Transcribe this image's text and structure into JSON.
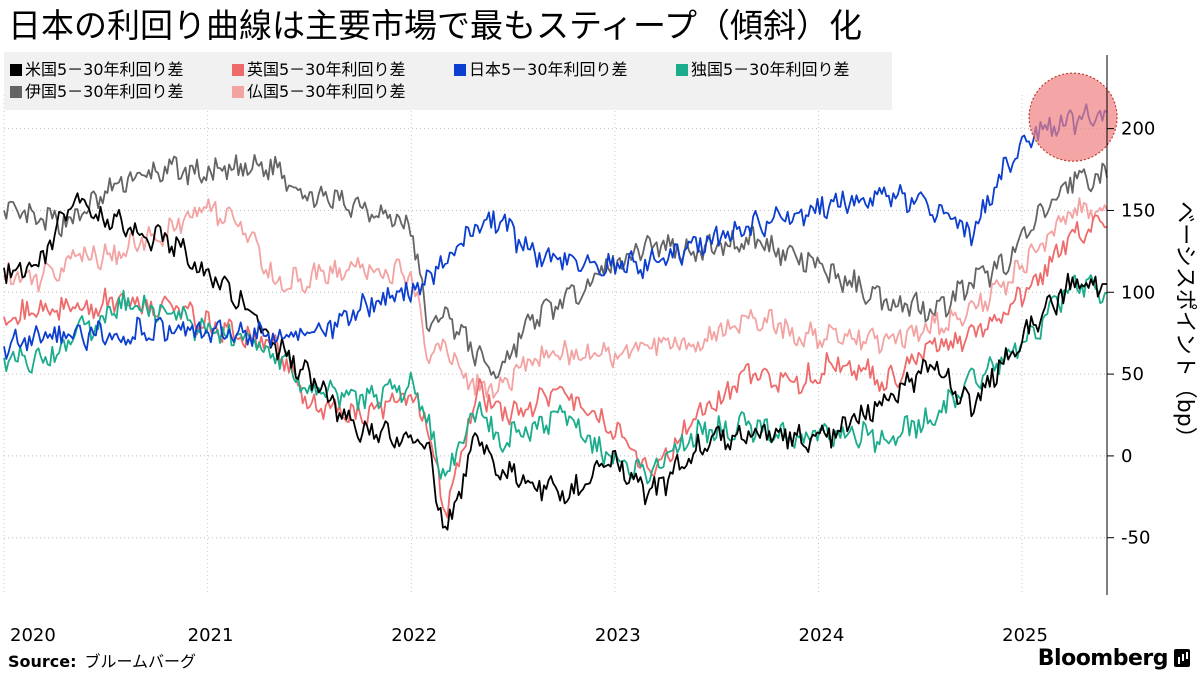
{
  "chart_data": {
    "type": "line",
    "title": "日本の利回り曲線は主要市場で最もスティープ（傾斜）化",
    "ylabel": "ベーシスポイント（bp）",
    "xlabel": "",
    "x_start": "2020-01",
    "x_end": "2025-06",
    "ylim": [
      -85,
      245
    ],
    "yticks": [
      -50,
      0,
      50,
      100,
      150,
      200
    ],
    "xticks": [
      "2020",
      "2021",
      "2022",
      "2023",
      "2024",
      "2025"
    ],
    "grid": "horizontal dotted",
    "legend_position": "top-left",
    "source_label": "Source:",
    "source_value": "ブルームバーグ",
    "brand": "Bloomberg",
    "annotation": {
      "type": "circle",
      "x": "2025-04",
      "y": 207,
      "color": "#f08080"
    },
    "series": [
      {
        "name": "伊国5－30年利回り差",
        "color": "#646464",
        "x": [
          "2020-01",
          "2020-03",
          "2020-05",
          "2020-08",
          "2020-11",
          "2021-01",
          "2021-03",
          "2021-05",
          "2021-07",
          "2021-10",
          "2022-01",
          "2022-02",
          "2022-03",
          "2022-05",
          "2022-06",
          "2022-08",
          "2022-10",
          "2023-01",
          "2023-03",
          "2023-06",
          "2023-09",
          "2023-12",
          "2024-02",
          "2024-05",
          "2024-08",
          "2024-10",
          "2024-12",
          "2025-02",
          "2025-04",
          "2025-06"
        ],
        "values": [
          150,
          143,
          144,
          168,
          175,
          172,
          175,
          177,
          158,
          154,
          140,
          78,
          88,
          60,
          50,
          82,
          95,
          118,
          130,
          125,
          133,
          120,
          110,
          95,
          90,
          105,
          118,
          145,
          170,
          170
        ]
      },
      {
        "name": "仏国5－30年利回り差",
        "color": "#f4a3a3",
        "x": [
          "2020-01",
          "2020-03",
          "2020-05",
          "2020-08",
          "2020-11",
          "2021-01",
          "2021-03",
          "2021-05",
          "2021-07",
          "2021-10",
          "2022-01",
          "2022-02",
          "2022-03",
          "2022-05",
          "2022-06",
          "2022-08",
          "2022-10",
          "2023-01",
          "2023-03",
          "2023-06",
          "2023-09",
          "2023-12",
          "2024-02",
          "2024-05",
          "2024-08",
          "2024-10",
          "2024-12",
          "2025-02",
          "2025-04",
          "2025-06"
        ],
        "values": [
          110,
          108,
          120,
          125,
          140,
          150,
          142,
          105,
          108,
          115,
          110,
          62,
          68,
          40,
          42,
          58,
          62,
          62,
          70,
          68,
          88,
          72,
          75,
          70,
          80,
          90,
          105,
          130,
          150,
          150
        ]
      },
      {
        "name": "英国5－30年利回り差",
        "color": "#ef6b6b",
        "x": [
          "2020-01",
          "2020-03",
          "2020-05",
          "2020-08",
          "2020-11",
          "2021-01",
          "2021-03",
          "2021-05",
          "2021-07",
          "2021-10",
          "2022-01",
          "2022-02",
          "2022-03",
          "2022-05",
          "2022-06",
          "2022-08",
          "2022-10",
          "2023-01",
          "2023-03",
          "2023-06",
          "2023-09",
          "2023-12",
          "2024-02",
          "2024-05",
          "2024-08",
          "2024-10",
          "2024-12",
          "2025-02",
          "2025-04",
          "2025-06"
        ],
        "values": [
          85,
          88,
          90,
          95,
          90,
          80,
          72,
          70,
          30,
          25,
          38,
          20,
          -35,
          45,
          25,
          30,
          40,
          15,
          -10,
          25,
          50,
          45,
          58,
          45,
          68,
          72,
          90,
          110,
          138,
          140
        ]
      },
      {
        "name": "独国5－30年利回り差",
        "color": "#1bac8c",
        "x": [
          "2020-01",
          "2020-03",
          "2020-05",
          "2020-08",
          "2020-11",
          "2021-01",
          "2021-03",
          "2021-05",
          "2021-07",
          "2021-10",
          "2022-01",
          "2022-02",
          "2022-03",
          "2022-05",
          "2022-06",
          "2022-08",
          "2022-10",
          "2023-01",
          "2023-03",
          "2023-06",
          "2023-09",
          "2023-12",
          "2024-02",
          "2024-05",
          "2024-08",
          "2024-10",
          "2024-12",
          "2025-02",
          "2025-04",
          "2025-06"
        ],
        "values": [
          60,
          58,
          72,
          92,
          88,
          75,
          72,
          62,
          40,
          35,
          42,
          20,
          -15,
          30,
          10,
          15,
          25,
          -5,
          -10,
          15,
          18,
          10,
          15,
          10,
          25,
          45,
          60,
          80,
          105,
          100
        ]
      },
      {
        "name": "米国5－30年利回り差",
        "color": "#000000",
        "x": [
          "2020-01",
          "2020-03",
          "2020-05",
          "2020-08",
          "2020-11",
          "2021-01",
          "2021-03",
          "2021-05",
          "2021-07",
          "2021-10",
          "2022-01",
          "2022-02",
          "2022-03",
          "2022-05",
          "2022-06",
          "2022-08",
          "2022-10",
          "2023-01",
          "2023-03",
          "2023-06",
          "2023-09",
          "2023-12",
          "2024-02",
          "2024-05",
          "2024-08",
          "2024-10",
          "2024-12",
          "2025-02",
          "2025-04",
          "2025-06"
        ],
        "values": [
          115,
          115,
          155,
          140,
          130,
          112,
          95,
          68,
          48,
          15,
          10,
          5,
          -50,
          15,
          -10,
          -15,
          -25,
          0,
          -25,
          5,
          15,
          10,
          15,
          35,
          55,
          30,
          60,
          85,
          105,
          105
        ]
      },
      {
        "name": "日本5－30年利回り差",
        "color": "#0c3ecf",
        "x": [
          "2020-01",
          "2020-03",
          "2020-05",
          "2020-08",
          "2020-11",
          "2021-01",
          "2021-03",
          "2021-05",
          "2021-07",
          "2021-10",
          "2022-01",
          "2022-02",
          "2022-03",
          "2022-05",
          "2022-06",
          "2022-08",
          "2022-10",
          "2023-01",
          "2023-03",
          "2023-06",
          "2023-09",
          "2023-12",
          "2024-02",
          "2024-05",
          "2024-08",
          "2024-10",
          "2024-12",
          "2025-02",
          "2025-04",
          "2025-06"
        ],
        "values": [
          67,
          72,
          73,
          75,
          76,
          75,
          75,
          74,
          72,
          90,
          100,
          110,
          120,
          140,
          145,
          125,
          120,
          115,
          118,
          130,
          140,
          148,
          155,
          160,
          150,
          135,
          175,
          200,
          205,
          210
        ]
      }
    ]
  }
}
